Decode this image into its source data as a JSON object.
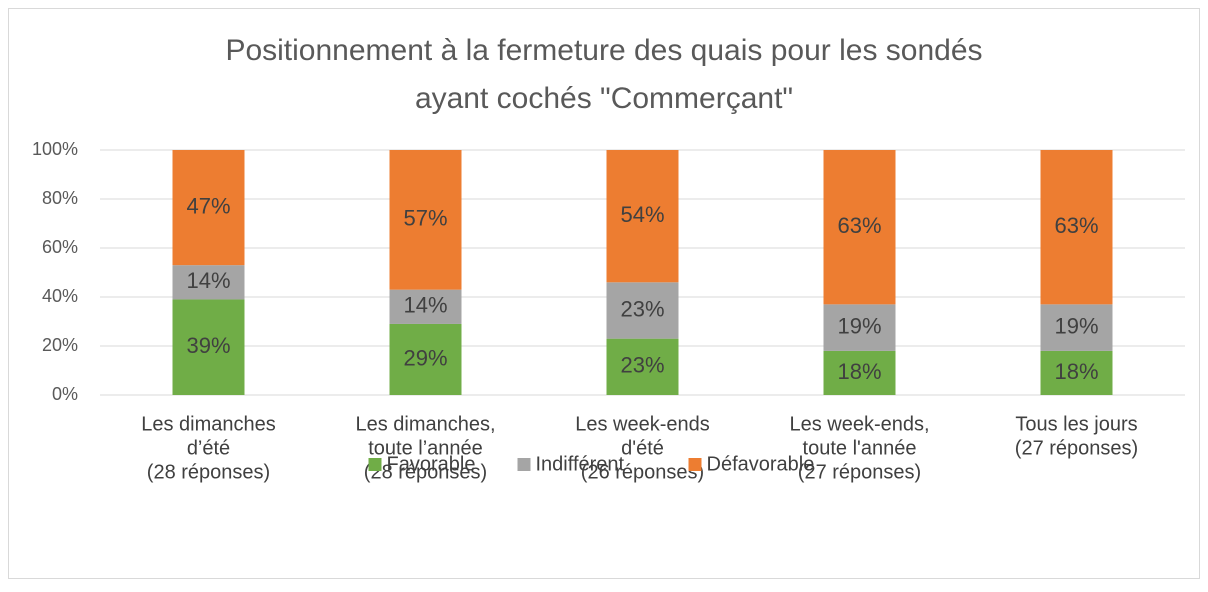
{
  "chart_data": {
    "type": "stacked_bar",
    "title": [
      "Positionnement à la fermeture des quais pour les sondés",
      "ayant cochés \"Commerçant\""
    ],
    "categories": [
      [
        "Les dimanches",
        "d’été",
        "(28 réponses)"
      ],
      [
        "Les dimanches,",
        "toute l’année",
        "(28 réponses)"
      ],
      [
        "Les week-ends",
        "d'été",
        "(26 réponses)"
      ],
      [
        "Les week-ends,",
        "toute l'année",
        "(27 réponses)"
      ],
      [
        "Tous les jours",
        "(27 réponses)"
      ]
    ],
    "series": [
      {
        "name": "Favorable",
        "color": "#70ad47",
        "values": [
          39,
          29,
          23,
          18,
          18
        ],
        "value_labels": [
          "39%",
          "29%",
          "23%",
          "18%",
          "18%"
        ]
      },
      {
        "name": "Indifférent",
        "color": "#a5a5a5",
        "values": [
          14,
          14,
          23,
          19,
          19
        ],
        "value_labels": [
          "14%",
          "14%",
          "23%",
          "19%",
          "19%"
        ]
      },
      {
        "name": "Défavorable",
        "color": "#ed7d31",
        "values": [
          47,
          57,
          54,
          63,
          63
        ],
        "value_labels": [
          "47%",
          "57%",
          "54%",
          "63%",
          "63%"
        ]
      }
    ],
    "ylim": [
      0,
      100
    ],
    "yticks": [
      {
        "value": 0,
        "label": "0%"
      },
      {
        "value": 20,
        "label": "20%"
      },
      {
        "value": 40,
        "label": "40%"
      },
      {
        "value": 60,
        "label": "60%"
      },
      {
        "value": 80,
        "label": "80%"
      },
      {
        "value": 100,
        "label": "100%"
      }
    ],
    "grid": true,
    "legend": "bottom"
  }
}
